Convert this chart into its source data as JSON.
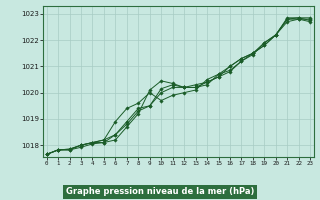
{
  "xlabel": "Graphe pression niveau de la mer (hPa)",
  "background_color": "#c8e8e0",
  "plot_bg_color": "#c8e8e0",
  "grid_color": "#a8ccc4",
  "line_color": "#1a5c28",
  "border_color": "#2d6e3e",
  "xlabel_bg": "#2d6e3e",
  "xlabel_fg": "#ffffff",
  "ylim": [
    1017.55,
    1023.3
  ],
  "xlim": [
    -0.3,
    23.3
  ],
  "yticks": [
    1018,
    1019,
    1020,
    1021,
    1022,
    1023
  ],
  "xticks": [
    0,
    1,
    2,
    3,
    4,
    5,
    6,
    7,
    8,
    9,
    10,
    11,
    12,
    13,
    14,
    15,
    16,
    17,
    18,
    19,
    20,
    21,
    22,
    23
  ],
  "series": [
    [
      1017.65,
      1017.82,
      1017.85,
      1018.0,
      1018.1,
      1018.1,
      1018.2,
      1018.7,
      1019.2,
      1020.1,
      1020.45,
      1020.35,
      1020.2,
      1020.2,
      1020.3,
      1020.7,
      1020.85,
      1021.2,
      1021.5,
      1021.8,
      1022.2,
      1022.8,
      1022.85,
      1022.75
    ],
    [
      1017.65,
      1017.82,
      1017.85,
      1018.0,
      1018.1,
      1018.2,
      1018.4,
      1018.9,
      1019.4,
      1019.5,
      1020.15,
      1020.3,
      1020.2,
      1020.3,
      1020.4,
      1020.6,
      1020.8,
      1021.2,
      1021.45,
      1021.9,
      1022.2,
      1022.7,
      1022.8,
      1022.7
    ],
    [
      1017.65,
      1017.82,
      1017.82,
      1017.92,
      1018.05,
      1018.1,
      1018.4,
      1018.8,
      1019.3,
      1019.5,
      1020.0,
      1020.2,
      1020.2,
      1020.2,
      1020.4,
      1020.6,
      1021.0,
      1021.3,
      1021.5,
      1021.8,
      1022.2,
      1022.8,
      1022.8,
      1022.8
    ],
    [
      1017.65,
      1017.82,
      1017.82,
      1018.0,
      1018.1,
      1018.2,
      1018.9,
      1019.4,
      1019.6,
      1020.0,
      1019.7,
      1019.9,
      1020.0,
      1020.1,
      1020.5,
      1020.7,
      1021.0,
      1021.3,
      1021.5,
      1021.9,
      1022.2,
      1022.85,
      1022.85,
      1022.85
    ]
  ]
}
